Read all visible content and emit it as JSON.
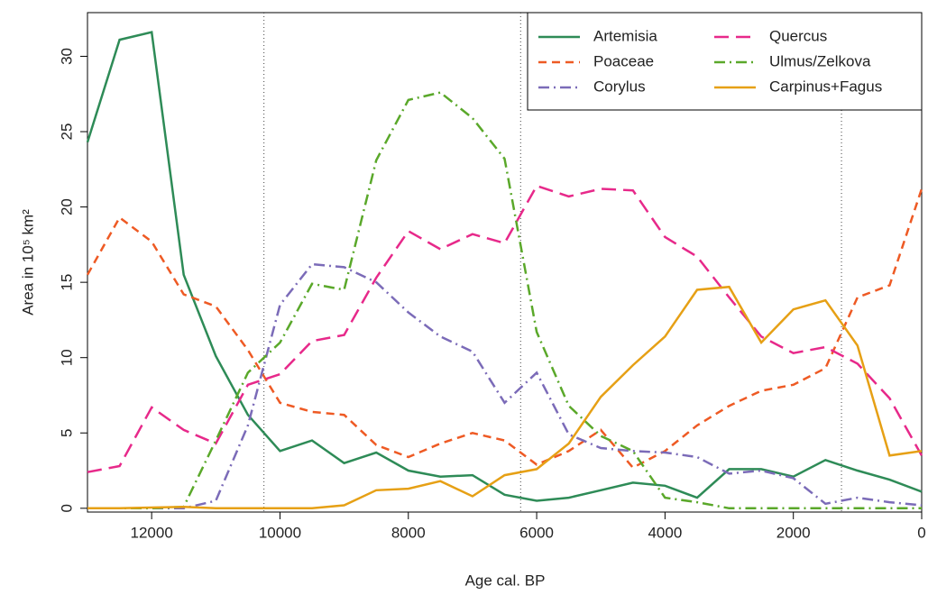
{
  "chart_data": {
    "type": "line",
    "x_label": "Age cal. BP",
    "y_label": "Area in 10⁵ km²",
    "x": [
      13000,
      12500,
      12000,
      11500,
      11000,
      10500,
      10000,
      9500,
      9000,
      8500,
      8000,
      7500,
      7000,
      6500,
      6000,
      5500,
      5000,
      4500,
      4000,
      3500,
      3000,
      2500,
      2000,
      1500,
      1000,
      500,
      0
    ],
    "xlim": [
      13000,
      0
    ],
    "ylim": [
      -0.25,
      32.9
    ],
    "xticks": [
      12000,
      10000,
      8000,
      6000,
      4000,
      2000,
      0
    ],
    "yticks": [
      0,
      5,
      10,
      15,
      20,
      25,
      30
    ],
    "vlines": [
      10250,
      6250,
      1250
    ],
    "legend": "top right",
    "series": [
      {
        "name": "Artemisia",
        "color": "#2e8b57",
        "dash": "solid",
        "values": [
          24.3,
          31.1,
          31.6,
          15.5,
          10.1,
          6.2,
          3.8,
          4.5,
          3.0,
          3.7,
          2.5,
          2.1,
          2.2,
          0.9,
          0.5,
          0.7,
          1.2,
          1.7,
          1.5,
          0.7,
          2.6,
          2.6,
          2.1,
          3.2,
          2.5,
          1.9,
          1.1
        ]
      },
      {
        "name": "Poaceae",
        "color": "#ee5a24",
        "dash": "dashed",
        "values": [
          15.5,
          19.3,
          17.7,
          14.2,
          13.4,
          10.5,
          7.0,
          6.4,
          6.2,
          4.2,
          3.4,
          4.3,
          5.0,
          4.5,
          2.9,
          3.8,
          5.2,
          2.7,
          3.8,
          5.5,
          6.8,
          7.8,
          8.2,
          9.3,
          14.0,
          14.8,
          21.2
        ]
      },
      {
        "name": "Corylus",
        "color": "#7b6bb8",
        "dash": "dashdot",
        "values": [
          0,
          0,
          0,
          0,
          0.5,
          5.5,
          13.5,
          16.2,
          16.0,
          15.0,
          13.0,
          11.4,
          10.4,
          7.0,
          9.0,
          4.9,
          4.0,
          3.8,
          3.7,
          3.4,
          2.3,
          2.5,
          2.0,
          0.3,
          0.7,
          0.4,
          0.2
        ]
      },
      {
        "name": "Quercus",
        "color": "#e7298a",
        "dash": "longdash",
        "values": [
          2.4,
          2.8,
          6.7,
          5.2,
          4.3,
          8.2,
          8.9,
          11.1,
          11.5,
          15.3,
          18.4,
          17.2,
          18.2,
          17.6,
          21.4,
          20.7,
          21.2,
          21.1,
          18.0,
          16.7,
          14.0,
          11.4,
          10.3,
          10.7,
          9.6,
          7.3,
          3.5
        ]
      },
      {
        "name": "Ulmus/Zelkova",
        "color": "#5aa82a",
        "dash": "dashdot",
        "values": [
          0,
          0,
          0,
          0.1,
          4.5,
          9.0,
          11.0,
          14.9,
          14.5,
          23.1,
          27.1,
          27.6,
          25.9,
          23.2,
          11.7,
          6.8,
          4.8,
          3.8,
          0.7,
          0.4,
          0,
          0,
          0,
          0,
          0,
          0,
          0
        ]
      },
      {
        "name": "Carpinus+Fagus",
        "color": "#e6a015",
        "dash": "solid",
        "values": [
          0,
          0,
          0.05,
          0.1,
          0,
          0,
          0,
          0,
          0.2,
          1.2,
          1.3,
          1.8,
          0.8,
          2.2,
          2.6,
          4.3,
          7.4,
          9.5,
          11.4,
          14.5,
          14.7,
          11.0,
          13.2,
          13.8,
          10.8,
          3.5,
          3.8
        ]
      }
    ]
  }
}
